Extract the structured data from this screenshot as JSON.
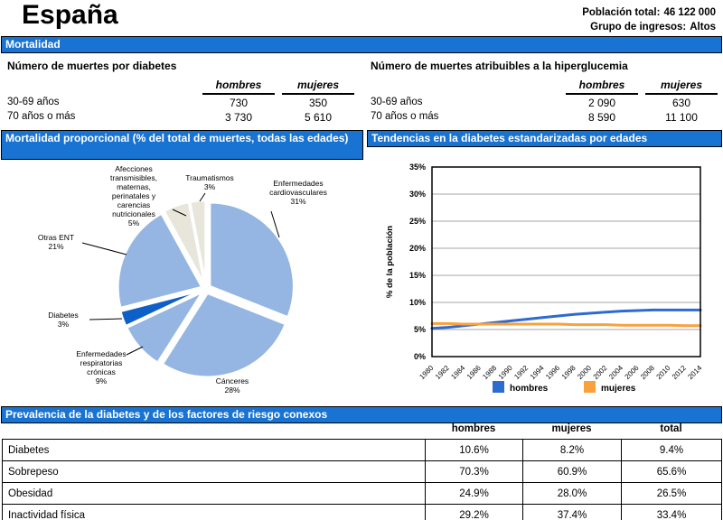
{
  "header": {
    "country": "España",
    "population_label": "Población total:",
    "population_value": "46 122 000",
    "income_label": "Grupo de ingresos:",
    "income_value": "Altos"
  },
  "section_bars": {
    "mortality": "Mortalidad",
    "proportional": "Mortalidad proporcional (% del total de muertes, todas las edades)",
    "trends": "Tendencias en la diabetes estandarizadas por edades",
    "prevalence": "Prevalencia de la diabetes y de los factores de riesgo conexos"
  },
  "deaths_diabetes": {
    "title": "Número de muertes por diabetes",
    "col_headers": [
      "hombres",
      "mujeres"
    ],
    "rows": [
      {
        "label": "30-69 años",
        "values": [
          "730",
          "350"
        ]
      },
      {
        "label": "70 años o más",
        "values": [
          "3 730",
          "5 610"
        ]
      }
    ]
  },
  "deaths_hyperglycemia": {
    "title": "Número de muertes atribuibles a la hiperglucemia",
    "col_headers": [
      "hombres",
      "mujeres"
    ],
    "rows": [
      {
        "label": "30-69 años",
        "values": [
          "2 090",
          "630"
        ]
      },
      {
        "label": "70 años o más",
        "values": [
          "8 590",
          "11 100"
        ]
      }
    ]
  },
  "chart_data": [
    {
      "type": "pie",
      "title": "Mortalidad proporcional (% del total de muertes, todas las edades)",
      "slices": [
        {
          "label": "Enfermedades cardiovasculares",
          "label_lines": [
            "Enfermedades",
            "cardiovasculares"
          ],
          "pct": 31,
          "color": "#95B5E2"
        },
        {
          "label": "Cánceres",
          "label_lines": [
            "Cánceres"
          ],
          "pct": 28,
          "color": "#95B5E2"
        },
        {
          "label": "Enfermedades respiratorias crónicas",
          "label_lines": [
            "Enfermedades",
            "respiratorias",
            "crónicas"
          ],
          "pct": 9,
          "color": "#95B5E2"
        },
        {
          "label": "Diabetes",
          "label_lines": [
            "Diabetes"
          ],
          "pct": 3,
          "color": "#0E5FC8"
        },
        {
          "label": "Otras ENT",
          "label_lines": [
            "Otras ENT"
          ],
          "pct": 21,
          "color": "#95B5E2"
        },
        {
          "label": "Afecciones transmisibles, maternas, perinatales y carencias nutricionales",
          "label_lines": [
            "Afecciones",
            "transmisibles,",
            "maternas,",
            "perinatales y",
            "carencias",
            "nutricionales"
          ],
          "pct": 5,
          "color": "#E8E6DB"
        },
        {
          "label": "Traumatismos",
          "label_lines": [
            "Traumatismos"
          ],
          "pct": 3,
          "color": "#E8E6DB"
        }
      ]
    },
    {
      "type": "line",
      "title": "Tendencias en la diabetes estandarizadas por edades",
      "ylabel": "% de la población",
      "ylim": [
        0,
        35
      ],
      "ytick_step": 5,
      "grid": true,
      "legend_position": "bottom",
      "x": [
        1980,
        1982,
        1984,
        1986,
        1988,
        1990,
        1992,
        1994,
        1996,
        1998,
        2000,
        2002,
        2004,
        2006,
        2008,
        2010,
        2012,
        2014
      ],
      "series": [
        {
          "name": "hombres",
          "color": "#2E6BD0",
          "values": [
            5.2,
            5.4,
            5.7,
            6.0,
            6.3,
            6.6,
            6.9,
            7.2,
            7.5,
            7.8,
            8.0,
            8.2,
            8.4,
            8.5,
            8.6,
            8.6,
            8.6,
            8.6
          ]
        },
        {
          "name": "mujeres",
          "color": "#F9A13C",
          "values": [
            6.1,
            6.1,
            6.0,
            6.0,
            6.0,
            6.0,
            6.0,
            6.0,
            6.0,
            5.9,
            5.9,
            5.9,
            5.8,
            5.8,
            5.8,
            5.8,
            5.7,
            5.7
          ]
        }
      ]
    }
  ],
  "prevalence": {
    "col_headers": [
      "hombres",
      "mujeres",
      "total"
    ],
    "rows": [
      {
        "label": "Diabetes",
        "values": [
          "10.6%",
          "8.2%",
          "9.4%"
        ]
      },
      {
        "label": "Sobrepeso",
        "values": [
          "70.3%",
          "60.9%",
          "65.6%"
        ]
      },
      {
        "label": "Obesidad",
        "values": [
          "24.9%",
          "28.0%",
          "26.5%"
        ]
      },
      {
        "label": "Inactividad física",
        "values": [
          "29.2%",
          "37.4%",
          "33.4%"
        ]
      }
    ]
  },
  "colors": {
    "section_bar_blue": "#1873D2",
    "pie_light_blue": "#95B5E2",
    "pie_dark_blue": "#0E5FC8",
    "pie_beige": "#E8E6DB",
    "line_hombres_blue": "#2E6BD0",
    "line_mujeres_orange": "#F9A13C",
    "grid_gray": "#A6A6A6"
  }
}
